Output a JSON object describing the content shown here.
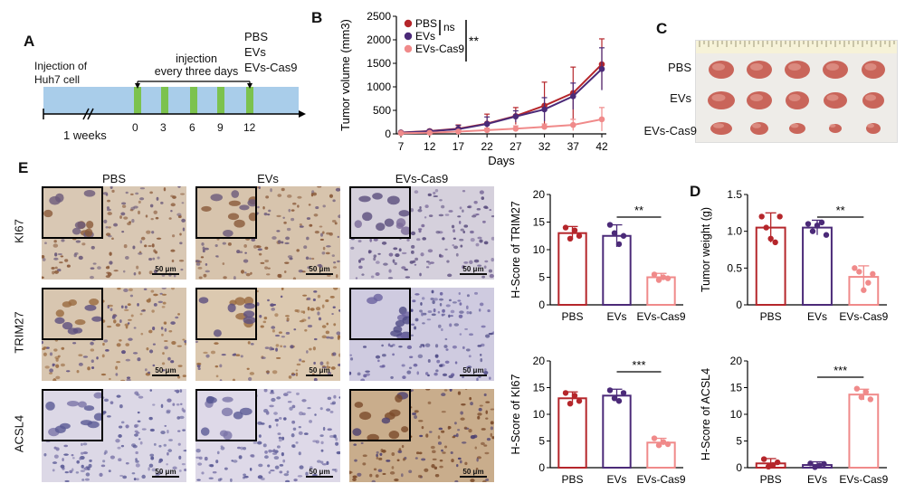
{
  "panels": {
    "a": "A",
    "b": "B",
    "c": "C",
    "d": "D",
    "e": "E"
  },
  "timeline": {
    "injection_huh7": [
      "Injection of",
      "Huh7 cell"
    ],
    "injection_schedule": [
      "injection",
      "every three days"
    ],
    "groups": [
      "PBS",
      "EVs",
      "EVs-Cas9"
    ],
    "break_label": "1 weeks",
    "ticks": [
      "0",
      "3",
      "6",
      "9",
      "12"
    ]
  },
  "photo": {
    "row_labels": [
      "PBS",
      "EVs",
      "EVs-Cas9"
    ]
  },
  "ihc": {
    "columns": [
      "PBS",
      "EVs",
      "EVs-Cas9"
    ],
    "rows": [
      "KI67",
      "TRIM27",
      "ACSL4"
    ],
    "scale": "50 μm"
  },
  "colors": {
    "pbs": "#b5262b",
    "evs": "#4b2a78",
    "cas9": "#f08a8a",
    "timeline_bar": "#a9cdea",
    "inject_mark": "#7cc24e"
  },
  "chart_data": [
    {
      "id": "tumor-volume",
      "type": "line",
      "ylabel": "Tumor volume (mm3)",
      "xlabel": "Days",
      "x": [
        7,
        12,
        17,
        22,
        27,
        32,
        37,
        42
      ],
      "ylim": [
        0,
        2500
      ],
      "yticks": [
        0,
        500,
        1000,
        1500,
        2000,
        2500
      ],
      "series": [
        {
          "name": "PBS",
          "values": [
            30,
            60,
            110,
            220,
            380,
            600,
            870,
            1480
          ],
          "err": [
            20,
            30,
            80,
            200,
            180,
            500,
            550,
            540
          ]
        },
        {
          "name": "EVs",
          "values": [
            25,
            55,
            100,
            210,
            370,
            520,
            800,
            1380
          ],
          "err": [
            20,
            30,
            80,
            150,
            120,
            250,
            280,
            450
          ]
        },
        {
          "name": "EVs-Cas9",
          "values": [
            15,
            25,
            50,
            80,
            110,
            150,
            190,
            310
          ],
          "err": [
            10,
            15,
            30,
            40,
            60,
            60,
            120,
            250
          ]
        }
      ],
      "annotations": [
        "ns",
        "**"
      ]
    },
    {
      "id": "tumor-weight",
      "type": "bar",
      "ylabel": "Tumor weight (g)",
      "categories": [
        "PBS",
        "EVs",
        "EVs-Cas9"
      ],
      "values": [
        1.05,
        1.05,
        0.38
      ],
      "err": [
        0.2,
        0.1,
        0.15
      ],
      "points": [
        [
          1.2,
          1.05,
          0.9,
          0.85,
          1.2
        ],
        [
          1.1,
          1.0,
          1.08,
          1.12,
          0.95
        ],
        [
          0.5,
          0.45,
          0.2,
          0.3,
          0.42
        ]
      ],
      "ylim": [
        0,
        1.5
      ],
      "yticks": [
        "0",
        "0.5",
        "1.0",
        "1.5"
      ],
      "significance": "**"
    },
    {
      "id": "hscore-trim27",
      "type": "bar",
      "ylabel": "H-Score of TRIM27",
      "categories": [
        "PBS",
        "EVs",
        "EVs-Cas9"
      ],
      "values": [
        13,
        12.5,
        5
      ],
      "err": [
        1.2,
        2,
        0.7
      ],
      "points": [
        [
          14,
          12,
          13.5,
          12.5
        ],
        [
          14.5,
          13,
          11,
          12.5
        ],
        [
          5.5,
          4.5,
          5,
          4.8
        ]
      ],
      "ylim": [
        0,
        20
      ],
      "yticks": [
        "0",
        "5",
        "10",
        "15",
        "20"
      ],
      "significance": "**"
    },
    {
      "id": "hscore-ki67",
      "type": "bar",
      "ylabel": "H-Score of KI67",
      "categories": [
        "PBS",
        "EVs",
        "EVs-Cas9"
      ],
      "values": [
        13,
        13.5,
        4.7
      ],
      "err": [
        1.2,
        1.2,
        0.8
      ],
      "points": [
        [
          14,
          12,
          13.5,
          12.5
        ],
        [
          14.5,
          13,
          12.5,
          14
        ],
        [
          5.5,
          4.2,
          4.8,
          4.4
        ]
      ],
      "ylim": [
        0,
        20
      ],
      "yticks": [
        "0",
        "5",
        "10",
        "15",
        "20"
      ],
      "significance": "***"
    },
    {
      "id": "hscore-acsl4",
      "type": "bar",
      "ylabel": "H-Score of ACSL4",
      "categories": [
        "PBS",
        "EVs",
        "EVs-Cas9"
      ],
      "values": [
        0.8,
        0.5,
        13.7
      ],
      "err": [
        0.9,
        0.6,
        1.0
      ],
      "points": [
        [
          1.6,
          0.2,
          0.5,
          1.0
        ],
        [
          0.8,
          0.1,
          0.4,
          0.7
        ],
        [
          14.8,
          13.2,
          14.2,
          12.8
        ]
      ],
      "ylim": [
        0,
        20
      ],
      "yticks": [
        "0",
        "5",
        "10",
        "15",
        "20"
      ],
      "significance": "***"
    }
  ]
}
